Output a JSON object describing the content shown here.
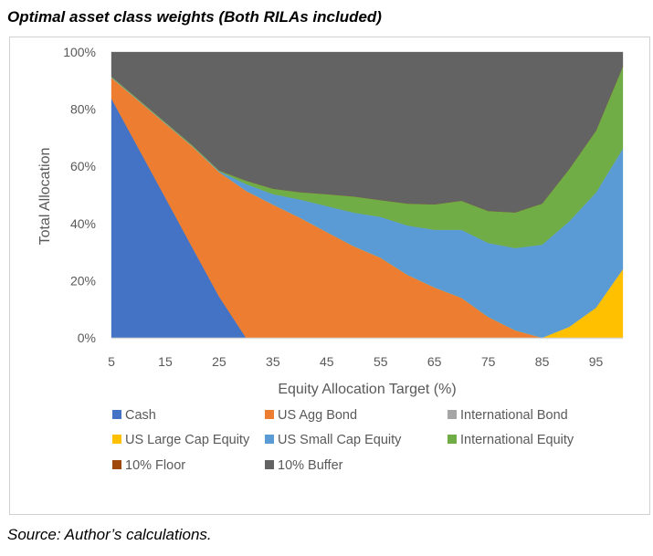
{
  "title": "Optimal asset class weights (Both RILAs included)",
  "source": "Source: Author’s calculations.",
  "chart_data": {
    "type": "area",
    "stacked": true,
    "xlabel": "Equity Allocation Target (%)",
    "ylabel": "Total Allocation",
    "x": [
      5,
      10,
      15,
      20,
      25,
      30,
      35,
      40,
      45,
      50,
      55,
      60,
      65,
      70,
      75,
      80,
      85,
      90,
      95,
      100
    ],
    "x_tick_labels": [
      "5",
      "15",
      "25",
      "35",
      "45",
      "55",
      "65",
      "75",
      "85",
      "95"
    ],
    "y_tick_labels": [
      "0%",
      "20%",
      "40%",
      "60%",
      "80%",
      "100%"
    ],
    "ylim": [
      0,
      100
    ],
    "grid": false,
    "legend_position": "bottom",
    "series": [
      {
        "name": "Cash",
        "color": "#4472C4",
        "values": [
          83.7,
          66.4,
          49.1,
          31.7,
          14.4,
          0,
          0,
          0,
          0,
          0,
          0,
          0,
          0,
          0,
          0,
          0,
          0,
          0,
          0,
          0
        ]
      },
      {
        "name": "US Agg Bond",
        "color": "#ED7D31",
        "values": [
          7.3,
          16.6,
          25.9,
          35.3,
          43.6,
          51.4,
          46.6,
          42,
          37,
          32,
          28,
          22,
          17.6,
          14,
          7.3,
          2.6,
          0,
          0,
          0,
          0
        ]
      },
      {
        "name": "International Bond",
        "color": "#A5A5A5",
        "values": [
          0,
          0,
          0,
          0,
          0,
          0,
          0,
          0,
          0,
          0,
          0,
          0,
          0,
          0,
          0,
          0,
          0,
          0,
          0,
          0
        ]
      },
      {
        "name": "US Large Cap Equity",
        "color": "#FFC000",
        "values": [
          0,
          0,
          0,
          0,
          0,
          0,
          0,
          0,
          0,
          0,
          0,
          0,
          0,
          0,
          0,
          0,
          0,
          3.8,
          10.5,
          24
        ]
      },
      {
        "name": "US Small Cap Equity",
        "color": "#5B9BD5",
        "values": [
          0.2,
          0.2,
          0.2,
          0.2,
          0.3,
          2.4,
          3.7,
          6.4,
          9.1,
          11.8,
          14.3,
          17.3,
          20.2,
          23.8,
          25.9,
          28.8,
          32.6,
          36.9,
          40.3,
          42.2
        ]
      },
      {
        "name": "International Equity",
        "color": "#70AD47",
        "values": [
          0.3,
          0.3,
          0.3,
          0.3,
          0.3,
          1.2,
          1.9,
          2.6,
          4.2,
          5.7,
          5.9,
          7.7,
          8.9,
          10.2,
          11.2,
          12.5,
          14.4,
          18.3,
          21.7,
          28.8
        ]
      },
      {
        "name": "10% Floor",
        "color": "#9E480E",
        "values": [
          0,
          0,
          0,
          0,
          0,
          0,
          0,
          0,
          0,
          0,
          0,
          0,
          0,
          0,
          0,
          0,
          0,
          0,
          0,
          0
        ]
      },
      {
        "name": "10% Buffer",
        "color": "#636363",
        "values": [
          8.5,
          16.5,
          24.5,
          32.5,
          41.4,
          45,
          47.8,
          49,
          49.7,
          50.5,
          51.8,
          53,
          53.3,
          52,
          55.6,
          56.1,
          53,
          41,
          27.5,
          5
        ]
      }
    ]
  }
}
